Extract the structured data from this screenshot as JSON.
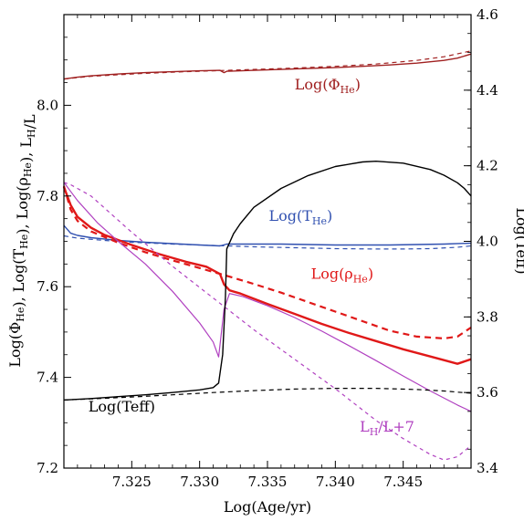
{
  "chart_data": {
    "type": "line",
    "xlabel": "Log(Age/yr)",
    "ylabel_left": "Log(Φ_He), Log(T_He), Log(ρ_He), L_H/L",
    "ylabel_right": "Log(Teff)",
    "xlim": [
      7.32,
      7.35
    ],
    "ylim_left": [
      7.2,
      8.2
    ],
    "ylim_right": [
      3.4,
      4.6
    ],
    "x_ticks": [
      7.325,
      7.33,
      7.335,
      7.34,
      7.345
    ],
    "x_tick_labels": [
      "7.325",
      "7.330",
      "7.335",
      "7.340",
      "7.345"
    ],
    "y_left_ticks": [
      7.2,
      7.4,
      7.6,
      7.8,
      8.0
    ],
    "y_left_tick_labels": [
      "7.2",
      "7.4",
      "7.6",
      "7.8",
      "8.0"
    ],
    "y_right_ticks": [
      3.4,
      3.6,
      3.8,
      4.0,
      4.2,
      4.4,
      4.6
    ],
    "y_right_tick_labels": [
      "3.4",
      "3.6",
      "3.8",
      "4.0",
      "4.2",
      "4.4",
      "4.6"
    ],
    "grid": false,
    "legend": "none",
    "annotations": [
      {
        "id": "phi",
        "base": "Log(Φ",
        "sub": "He",
        "tail": ")",
        "color": "#a02020",
        "x": 7.337,
        "y": 8.035
      },
      {
        "id": "the",
        "base": "Log(T",
        "sub": "He",
        "tail": ")",
        "color": "#3050b0",
        "x": 7.3351,
        "y": 7.745
      },
      {
        "id": "rho",
        "base": "Log(ρ",
        "sub": "He",
        "tail": ")",
        "color": "#e01818",
        "x": 7.3382,
        "y": 7.618
      },
      {
        "id": "lh",
        "base": "L",
        "sub": "H",
        "tail": "/L+7",
        "color": "#b040c0",
        "x": 7.3418,
        "y": 7.28
      },
      {
        "id": "teff",
        "base": "Log(Teff)",
        "sub": "",
        "tail": "",
        "color": "#000000",
        "x": 7.3218,
        "y": 7.325
      }
    ],
    "series": [
      {
        "id": "phi_solid",
        "axis": "left",
        "color": "#a02020",
        "width": 1.4,
        "dash": "",
        "x": [
          7.32,
          7.321,
          7.322,
          7.324,
          7.326,
          7.328,
          7.33,
          7.3315,
          7.3318,
          7.332,
          7.334,
          7.336,
          7.338,
          7.34,
          7.342,
          7.344,
          7.346,
          7.348,
          7.349,
          7.35
        ],
        "y": [
          8.058,
          8.062,
          8.065,
          8.069,
          8.072,
          8.074,
          8.076,
          8.077,
          8.072,
          8.075,
          8.077,
          8.079,
          8.081,
          8.083,
          8.086,
          8.089,
          8.093,
          8.099,
          8.104,
          8.113
        ]
      },
      {
        "id": "phi_dashed",
        "axis": "left",
        "color": "#a02020",
        "width": 1.2,
        "dash": "5,4",
        "x": [
          7.32,
          7.322,
          7.325,
          7.328,
          7.331,
          7.334,
          7.337,
          7.34,
          7.343,
          7.346,
          7.348,
          7.35
        ],
        "y": [
          8.058,
          8.064,
          8.069,
          8.073,
          8.076,
          8.079,
          8.082,
          8.086,
          8.091,
          8.099,
          8.107,
          8.12
        ]
      },
      {
        "id": "the_solid",
        "axis": "left",
        "color": "#3050b0",
        "width": 1.4,
        "dash": "",
        "x": [
          7.32,
          7.3205,
          7.321,
          7.322,
          7.324,
          7.326,
          7.328,
          7.33,
          7.3315,
          7.332,
          7.334,
          7.336,
          7.338,
          7.34,
          7.342,
          7.344,
          7.346,
          7.348,
          7.35
        ],
        "y": [
          7.735,
          7.718,
          7.713,
          7.708,
          7.702,
          7.698,
          7.695,
          7.692,
          7.69,
          7.694,
          7.694,
          7.694,
          7.693,
          7.692,
          7.692,
          7.692,
          7.693,
          7.694,
          7.696
        ]
      },
      {
        "id": "the_dashed",
        "axis": "left",
        "color": "#3050b0",
        "width": 1.2,
        "dash": "5,4",
        "x": [
          7.32,
          7.321,
          7.323,
          7.325,
          7.328,
          7.331,
          7.334,
          7.337,
          7.34,
          7.343,
          7.345,
          7.347,
          7.349,
          7.35
        ],
        "y": [
          7.712,
          7.707,
          7.702,
          7.698,
          7.694,
          7.691,
          7.688,
          7.686,
          7.684,
          7.683,
          7.683,
          7.684,
          7.687,
          7.69
        ]
      },
      {
        "id": "rho_solid",
        "axis": "left",
        "color": "#e01818",
        "width": 2.4,
        "dash": "",
        "x": [
          7.32,
          7.3205,
          7.321,
          7.322,
          7.323,
          7.325,
          7.327,
          7.329,
          7.3305,
          7.3315,
          7.3318,
          7.3322,
          7.333,
          7.335,
          7.337,
          7.339,
          7.341,
          7.343,
          7.345,
          7.347,
          7.348,
          7.349,
          7.35
        ],
        "y": [
          7.82,
          7.78,
          7.754,
          7.73,
          7.714,
          7.692,
          7.672,
          7.655,
          7.644,
          7.628,
          7.605,
          7.592,
          7.585,
          7.562,
          7.54,
          7.518,
          7.498,
          7.48,
          7.462,
          7.446,
          7.438,
          7.43,
          7.44
        ]
      },
      {
        "id": "rho_dashed",
        "axis": "left",
        "color": "#e01818",
        "width": 2.2,
        "dash": "7,5",
        "x": [
          7.32,
          7.3205,
          7.321,
          7.322,
          7.324,
          7.326,
          7.328,
          7.33,
          7.332,
          7.334,
          7.336,
          7.338,
          7.34,
          7.342,
          7.344,
          7.346,
          7.348,
          7.349,
          7.35
        ],
        "y": [
          7.822,
          7.77,
          7.745,
          7.722,
          7.697,
          7.676,
          7.658,
          7.641,
          7.624,
          7.606,
          7.587,
          7.566,
          7.545,
          7.524,
          7.503,
          7.49,
          7.486,
          7.49,
          7.51
        ]
      },
      {
        "id": "lh_solid",
        "axis": "left",
        "color": "#b040c0",
        "width": 1.2,
        "dash": "",
        "x": [
          7.32,
          7.3205,
          7.321,
          7.3225,
          7.324,
          7.326,
          7.328,
          7.33,
          7.331,
          7.3314,
          7.3318,
          7.3322,
          7.3332,
          7.335,
          7.337,
          7.339,
          7.341,
          7.343,
          7.345,
          7.347,
          7.349,
          7.35
        ],
        "y": [
          7.83,
          7.81,
          7.79,
          7.74,
          7.7,
          7.65,
          7.59,
          7.52,
          7.478,
          7.445,
          7.55,
          7.585,
          7.578,
          7.558,
          7.532,
          7.502,
          7.47,
          7.437,
          7.403,
          7.37,
          7.339,
          7.325
        ]
      },
      {
        "id": "lh_dashed",
        "axis": "left",
        "color": "#b040c0",
        "width": 1.2,
        "dash": "4,4",
        "x": [
          7.32,
          7.3205,
          7.322,
          7.325,
          7.328,
          7.331,
          7.334,
          7.337,
          7.34,
          7.343,
          7.345,
          7.347,
          7.348,
          7.349,
          7.35
        ],
        "y": [
          7.83,
          7.825,
          7.8,
          7.72,
          7.645,
          7.575,
          7.505,
          7.44,
          7.375,
          7.305,
          7.265,
          7.23,
          7.218,
          7.225,
          7.25
        ]
      },
      {
        "id": "teff_solid",
        "axis": "right",
        "color": "#000000",
        "width": 1.4,
        "dash": "",
        "x": [
          7.32,
          7.322,
          7.324,
          7.326,
          7.328,
          7.33,
          7.331,
          7.3314,
          7.3317,
          7.3319,
          7.332,
          7.3325,
          7.333,
          7.334,
          7.336,
          7.338,
          7.34,
          7.342,
          7.343,
          7.345,
          7.347,
          7.348,
          7.349,
          7.3495,
          7.35
        ],
        "y": [
          3.58,
          3.584,
          3.589,
          3.594,
          3.6,
          3.607,
          3.613,
          3.625,
          3.7,
          3.85,
          3.98,
          4.02,
          4.047,
          4.09,
          4.14,
          4.174,
          4.198,
          4.21,
          4.212,
          4.207,
          4.19,
          4.175,
          4.155,
          4.14,
          4.12
        ]
      },
      {
        "id": "teff_dashed",
        "axis": "right",
        "color": "#000000",
        "width": 1.2,
        "dash": "5,4",
        "x": [
          7.32,
          7.322,
          7.325,
          7.328,
          7.331,
          7.334,
          7.337,
          7.34,
          7.343,
          7.346,
          7.348,
          7.35
        ],
        "y": [
          3.58,
          3.583,
          3.588,
          3.594,
          3.6,
          3.605,
          3.609,
          3.611,
          3.611,
          3.608,
          3.604,
          3.598
        ]
      }
    ]
  }
}
